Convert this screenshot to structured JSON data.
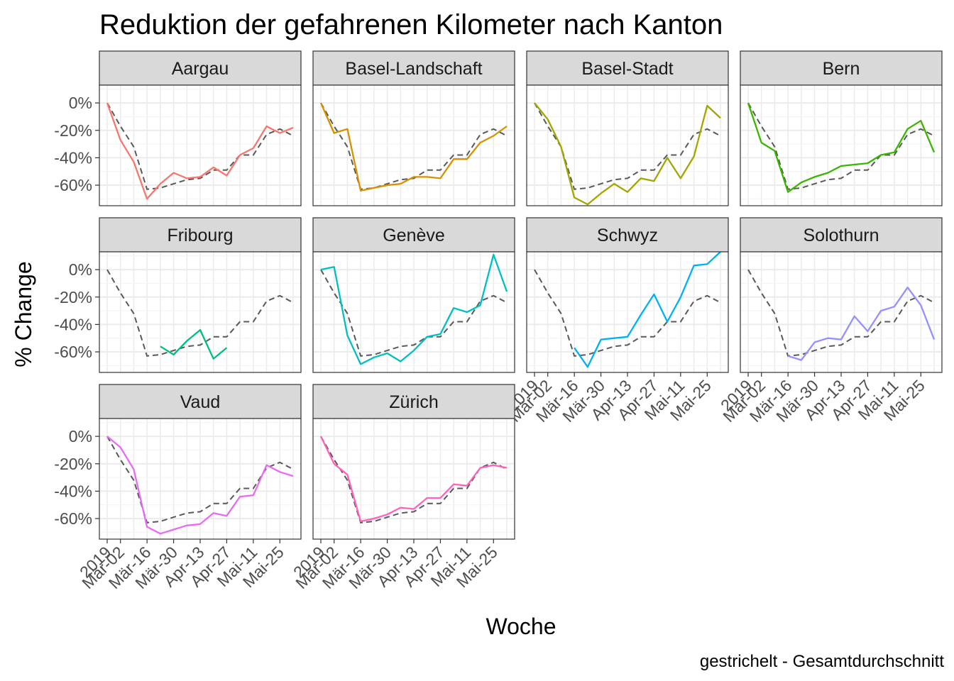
{
  "chart_data": {
    "type": "line",
    "title": "Reduktion der gefahrenen Kilometer nach Kanton",
    "xlabel": "Woche",
    "ylabel": "% Change",
    "caption": "gestrichelt - Gesamtdurchschnitt",
    "x_tick_labels": [
      "2019",
      "Mär-02",
      "Mär-16",
      "Mär-30",
      "Apr-13",
      "Apr-27",
      "Mai-11",
      "Mai-25"
    ],
    "x_tick_weeks": [
      0,
      1,
      3,
      5,
      7,
      9,
      11,
      13
    ],
    "y_tick_labels": [
      "0%",
      "-20%",
      "-40%",
      "-60%"
    ],
    "y_ticks": [
      0,
      -20,
      -40,
      -60
    ],
    "ylim": [
      -75,
      13
    ],
    "x_weeks": [
      0,
      1,
      2,
      3,
      4,
      5,
      6,
      7,
      8,
      9,
      10,
      11,
      12,
      13,
      14
    ],
    "grid": true,
    "average_series": {
      "name": "Gesamtdurchschnitt",
      "line_style": "dashed",
      "color": "#595959",
      "values": [
        0,
        -17,
        -32,
        -63,
        -62,
        -59,
        -56,
        -55,
        -49,
        -49,
        -38,
        -38,
        -23,
        -19,
        -24
      ]
    },
    "series": [
      {
        "name": "Aargau",
        "color": "#F8766D",
        "values": [
          0,
          -27,
          -43,
          -70,
          -59,
          -51,
          -55,
          -54,
          -47,
          -53,
          -38,
          -33,
          -17,
          -22,
          -18
        ]
      },
      {
        "name": "Basel-Landschaft",
        "color": "#D89000",
        "values": [
          0,
          -22,
          -19,
          -64,
          -62,
          -60,
          -59,
          -54,
          -54,
          -55,
          -41,
          -41,
          -29,
          -24,
          -17
        ]
      },
      {
        "name": "Basel-Stadt",
        "color": "#A3A500",
        "values": [
          0,
          -12,
          -32,
          -69,
          -74,
          -66,
          -59,
          -65,
          -55,
          -57,
          -40,
          -55,
          -39,
          -2,
          -11
        ]
      },
      {
        "name": "Bern",
        "color": "#39B600",
        "values": [
          0,
          -29,
          -35,
          -65,
          -58,
          -54,
          -51,
          -46,
          -45,
          -44,
          -38,
          -36,
          -19,
          -13,
          -36
        ]
      },
      {
        "name": "Fribourg",
        "color": "#00BF7D",
        "values": [
          null,
          null,
          null,
          null,
          -56,
          -62,
          -52,
          -44,
          -65,
          -57,
          null,
          null,
          null,
          null,
          null
        ]
      },
      {
        "name": "Genève",
        "color": "#00BFC4",
        "values": [
          0,
          2,
          -48,
          -69,
          -64,
          -61,
          -67,
          -59,
          -49,
          -47,
          -28,
          -31,
          -26,
          11,
          -16
        ]
      },
      {
        "name": "Schwyz",
        "color": "#00B0F6",
        "values": [
          null,
          null,
          null,
          -57,
          -71,
          -51,
          -50,
          -49,
          -33,
          -18,
          -38,
          -20,
          3,
          4,
          13
        ]
      },
      {
        "name": "Solothurn",
        "color": "#9590FF",
        "values": [
          null,
          null,
          null,
          -63,
          -66,
          -53,
          -50,
          -51,
          -34,
          -45,
          -30,
          -27,
          -13,
          -26,
          -51
        ]
      },
      {
        "name": "Vaud",
        "color": "#E76BF3",
        "values": [
          0,
          -8,
          -24,
          -66,
          -71,
          -68,
          -65,
          -64,
          -56,
          -58,
          -44,
          -43,
          -21,
          -26,
          -29
        ]
      },
      {
        "name": "Zürich",
        "color": "#FF62BC",
        "values": [
          0,
          -20,
          -28,
          -62,
          -60,
          -57,
          -52,
          -53,
          -45,
          -45,
          -35,
          -36,
          -23,
          -21,
          -23
        ]
      }
    ]
  }
}
